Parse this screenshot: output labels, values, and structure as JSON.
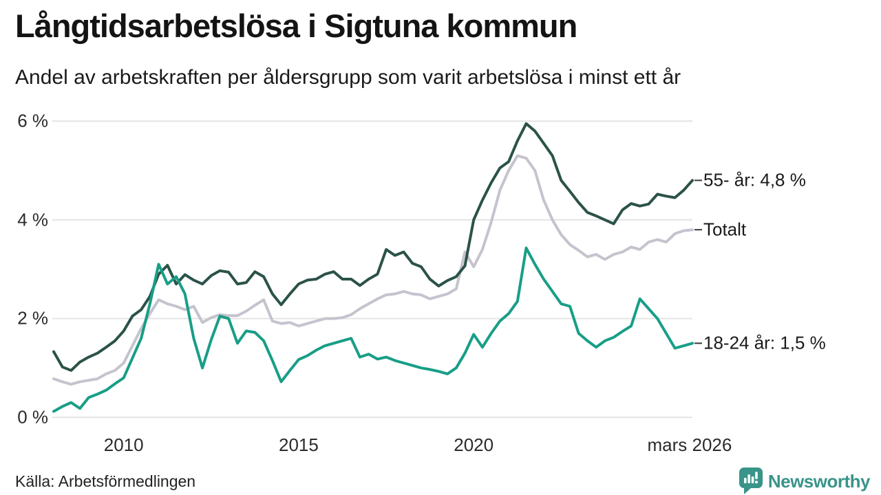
{
  "header": {
    "title": "Långtidsarbetslösa i Sigtuna kommun",
    "subtitle": "Andel av arbetskraften per åldersgrupp som varit arbetslösa i minst ett år"
  },
  "footer": {
    "source": "Källa: Arbetsförmedlingen",
    "brand": "Newsworthy"
  },
  "colors": {
    "series_55plus": "#2b5249",
    "series_totalt": "#c5c3cd",
    "series_1824": "#189e87",
    "gridline": "#e4e4e4",
    "label_tick": "#3a3a3a",
    "brand_teal": "#399489"
  },
  "chart_data": {
    "type": "line",
    "title": "Långtidsarbetslösa i Sigtuna kommun",
    "subtitle": "Andel av arbetskraften per åldersgrupp som varit arbetslösa i minst ett år",
    "x_unit": "year (quarterly points)",
    "x_start": 2008.0,
    "x_step": 0.25,
    "grid": "horizontal",
    "legend_position": "end-labels-right",
    "y_axis": {
      "range": [
        0,
        6.2
      ],
      "ticks": [
        {
          "label": "0 %",
          "value": 0
        },
        {
          "label": "2 %",
          "value": 2
        },
        {
          "label": "4 %",
          "value": 4
        },
        {
          "label": "6 %",
          "value": 6
        }
      ]
    },
    "x_axis": {
      "ticks": [
        {
          "label": "2010",
          "value": 2010
        },
        {
          "label": "2015",
          "value": 2015
        },
        {
          "label": "2020",
          "value": 2020
        },
        {
          "label": "mars 2026",
          "value": 2026.17
        }
      ]
    },
    "series": [
      {
        "id": "55plus",
        "name": "55- år",
        "end_label": "55- år: 4,8 %",
        "end_value": "4,8 %",
        "color": "#2b5249",
        "z": 2,
        "values": [
          1.33,
          1.02,
          0.95,
          1.12,
          1.22,
          1.3,
          1.42,
          1.55,
          1.75,
          2.05,
          2.18,
          2.45,
          2.9,
          3.08,
          2.7,
          2.89,
          2.78,
          2.7,
          2.87,
          2.97,
          2.94,
          2.7,
          2.73,
          2.95,
          2.85,
          2.5,
          2.28,
          2.5,
          2.7,
          2.78,
          2.8,
          2.9,
          2.95,
          2.8,
          2.8,
          2.67,
          2.8,
          2.9,
          3.4,
          3.28,
          3.35,
          3.12,
          3.05,
          2.8,
          2.66,
          2.77,
          2.85,
          3.07,
          4.0,
          4.4,
          4.75,
          5.05,
          5.18,
          5.6,
          5.95,
          5.8,
          5.55,
          5.3,
          4.8,
          4.58,
          4.35,
          4.15,
          4.08,
          4.0,
          3.92,
          4.2,
          4.33,
          4.28,
          4.32,
          4.52,
          4.48,
          4.45,
          4.6,
          4.8
        ]
      },
      {
        "id": "totalt",
        "name": "Totalt",
        "end_label": "Totalt",
        "end_value": "3,8 %",
        "color": "#c5c3cd",
        "z": 1,
        "values": [
          0.78,
          0.72,
          0.67,
          0.72,
          0.75,
          0.78,
          0.88,
          0.95,
          1.1,
          1.45,
          1.8,
          2.1,
          2.38,
          2.3,
          2.25,
          2.18,
          2.25,
          1.92,
          2.02,
          2.08,
          2.06,
          2.06,
          2.15,
          2.27,
          2.38,
          1.95,
          1.9,
          1.92,
          1.85,
          1.9,
          1.95,
          2.0,
          2.0,
          2.02,
          2.08,
          2.2,
          2.3,
          2.4,
          2.48,
          2.5,
          2.55,
          2.5,
          2.48,
          2.4,
          2.45,
          2.5,
          2.6,
          3.35,
          3.05,
          3.4,
          3.95,
          4.6,
          5.0,
          5.3,
          5.25,
          5.0,
          4.4,
          4.0,
          3.7,
          3.5,
          3.38,
          3.25,
          3.3,
          3.2,
          3.3,
          3.35,
          3.45,
          3.4,
          3.55,
          3.6,
          3.55,
          3.72,
          3.78,
          3.8
        ]
      },
      {
        "id": "1824",
        "name": "18-24 år",
        "end_label": "18-24 år: 1,5 %",
        "end_value": "1,5 %",
        "color": "#189e87",
        "z": 3,
        "values": [
          0.12,
          0.22,
          0.3,
          0.18,
          0.4,
          0.47,
          0.55,
          0.68,
          0.8,
          1.2,
          1.6,
          2.3,
          3.1,
          2.7,
          2.85,
          2.5,
          1.6,
          1.0,
          1.57,
          2.05,
          2.0,
          1.5,
          1.75,
          1.72,
          1.55,
          1.15,
          0.72,
          0.95,
          1.17,
          1.25,
          1.36,
          1.45,
          1.5,
          1.55,
          1.6,
          1.22,
          1.28,
          1.18,
          1.22,
          1.15,
          1.1,
          1.05,
          1.0,
          0.97,
          0.93,
          0.88,
          1.0,
          1.3,
          1.68,
          1.42,
          1.7,
          1.95,
          2.1,
          2.35,
          3.43,
          3.1,
          2.8,
          2.55,
          2.3,
          2.25,
          1.7,
          1.55,
          1.42,
          1.55,
          1.62,
          1.74,
          1.85,
          2.4,
          2.2,
          2.0,
          1.7,
          1.4,
          1.45,
          1.5
        ]
      }
    ]
  }
}
